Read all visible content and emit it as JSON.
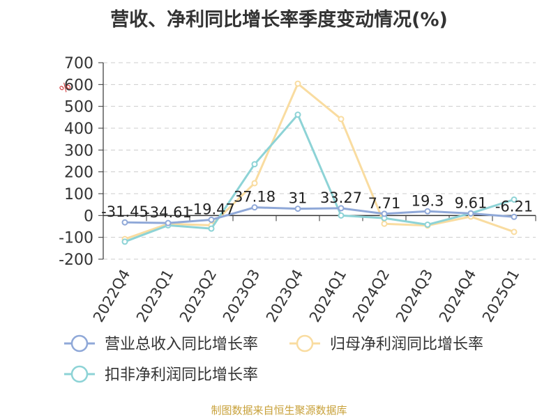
{
  "chart_data": {
    "type": "line",
    "title": "营收、净利同比增长率季度变动情况(%)",
    "ylabel": "%",
    "ylim": [
      -200,
      700
    ],
    "yticks": [
      "700",
      "600",
      "500",
      "400",
      "300",
      "200",
      "100",
      "0",
      "-100",
      "-200"
    ],
    "grid": true,
    "legend_position": "bottom",
    "categories": [
      "2022Q4",
      "2023Q1",
      "2023Q2",
      "2023Q3",
      "2023Q4",
      "2024Q1",
      "2024Q2",
      "2024Q3",
      "2024Q4",
      "2025Q1"
    ],
    "series": [
      {
        "name": "营业总收入同比增长率",
        "color": "#8fa8d8",
        "values": [
          -31.45,
          -34.61,
          -19.47,
          37.18,
          31,
          33.27,
          7.71,
          19.3,
          9.61,
          -6.21
        ],
        "labels": [
          "-31.45",
          "-34.61",
          "-19.47",
          "37.18",
          "31",
          "33.27",
          "7.71",
          "19.3",
          "9.61",
          "-6.21"
        ]
      },
      {
        "name": "归母净利润同比增长率",
        "color": "#f9dca0",
        "values": [
          -108,
          -38,
          -45,
          148,
          604,
          442,
          -38,
          -46,
          -5,
          -75
        ]
      },
      {
        "name": "扣非净利润同比增长率",
        "color": "#8dd3d6",
        "values": [
          -120,
          -45,
          -60,
          235,
          462,
          0,
          -12,
          -42,
          10,
          73
        ]
      }
    ],
    "source_note": "制图数据来自恒生聚源数据库"
  }
}
